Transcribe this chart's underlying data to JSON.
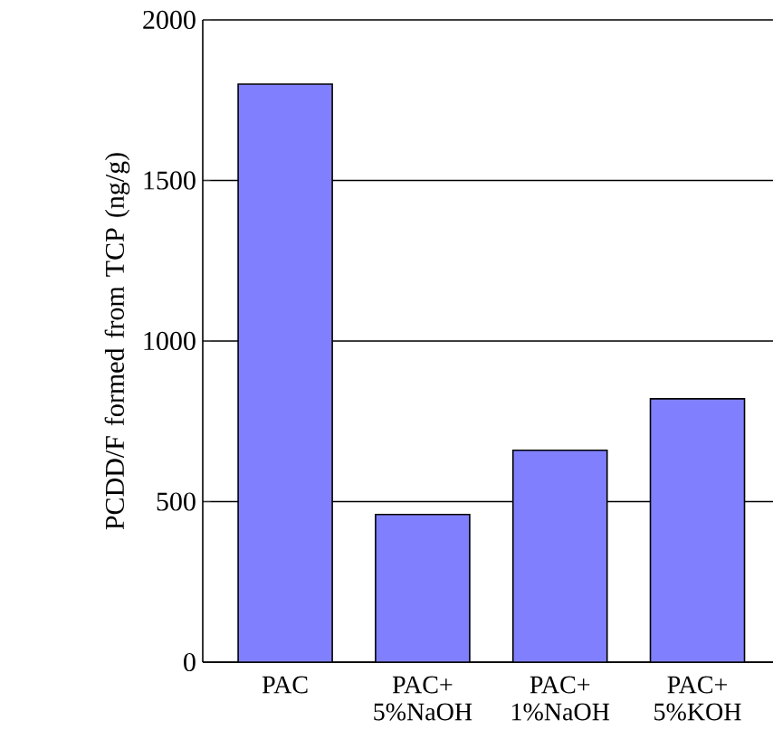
{
  "chart_data": {
    "type": "bar",
    "ylabel": "PCDD/F formed from TCP (ng/g)",
    "categories": [
      "PAC",
      "PAC+ 5%NaOH",
      "PAC+ 1%NaOH",
      "PAC+ 5%KOH"
    ],
    "values": [
      1800,
      460,
      660,
      820
    ],
    "color": "#8080ff",
    "ylim": [
      0,
      2000
    ],
    "yticks": [
      0,
      500,
      1000,
      1500,
      2000
    ],
    "grid": "y"
  }
}
